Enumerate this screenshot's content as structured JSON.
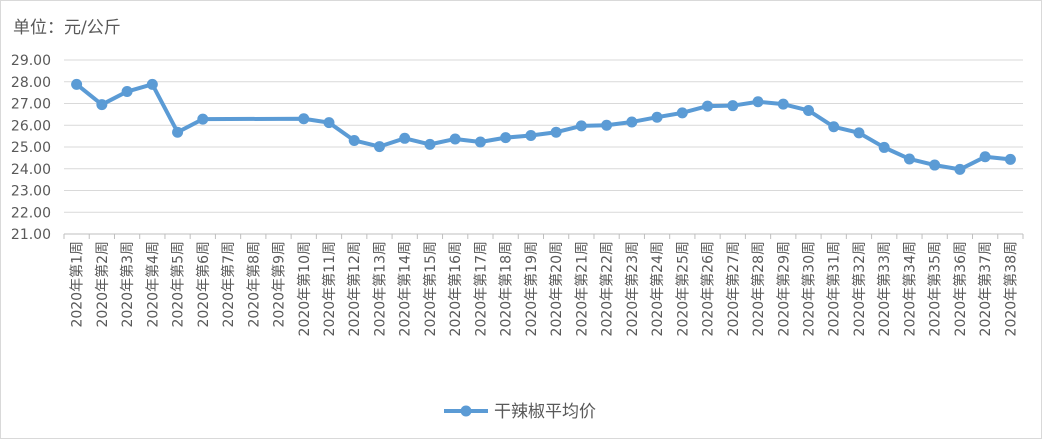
{
  "chart_data": {
    "type": "line",
    "title": "",
    "unit_label": "单位：元/公斤",
    "xlabel": "",
    "ylabel": "",
    "ylim": [
      21,
      29
    ],
    "y_ticks": [
      "21.00",
      "22.00",
      "23.00",
      "24.00",
      "25.00",
      "26.00",
      "27.00",
      "28.00",
      "29.00"
    ],
    "grid": true,
    "legend_position": "bottom",
    "categories": [
      "2020年第1周",
      "2020年第2周",
      "2020年第3周",
      "2020年第4周",
      "2020年第5周",
      "2020年第6周",
      "2020年第7周",
      "2020年第8周",
      "2020年第9周",
      "2020年第10周",
      "2020年第11周",
      "2020年第12周",
      "2020年第13周",
      "2020年第14周",
      "2020年第15周",
      "2020年第16周",
      "2020年第17周",
      "2020年第18周",
      "2020年第19周",
      "2020年第20周",
      "2020年第21周",
      "2020年第22周",
      "2020年第23周",
      "2020年第24周",
      "2020年第25周",
      "2020年第26周",
      "2020年第27周",
      "2020年第28周",
      "2020年第29周",
      "2020年第30周",
      "2020年第31周",
      "2020年第32周",
      "2020年第33周",
      "2020年第34周",
      "2020年第35周",
      "2020年第36周",
      "2020年第37周",
      "2020年第38周"
    ],
    "series": [
      {
        "name": "干辣椒平均价",
        "color": "#5b9bd5",
        "values": [
          27.88,
          26.95,
          27.55,
          27.88,
          25.68,
          26.28,
          null,
          null,
          null,
          26.3,
          26.12,
          25.3,
          25.02,
          25.4,
          25.12,
          25.37,
          25.23,
          25.43,
          25.53,
          25.68,
          25.97,
          26.0,
          26.15,
          26.37,
          26.57,
          26.88,
          26.9,
          27.08,
          26.97,
          26.68,
          25.93,
          25.65,
          24.98,
          24.45,
          24.17,
          23.97,
          24.55,
          24.43
        ]
      }
    ]
  }
}
